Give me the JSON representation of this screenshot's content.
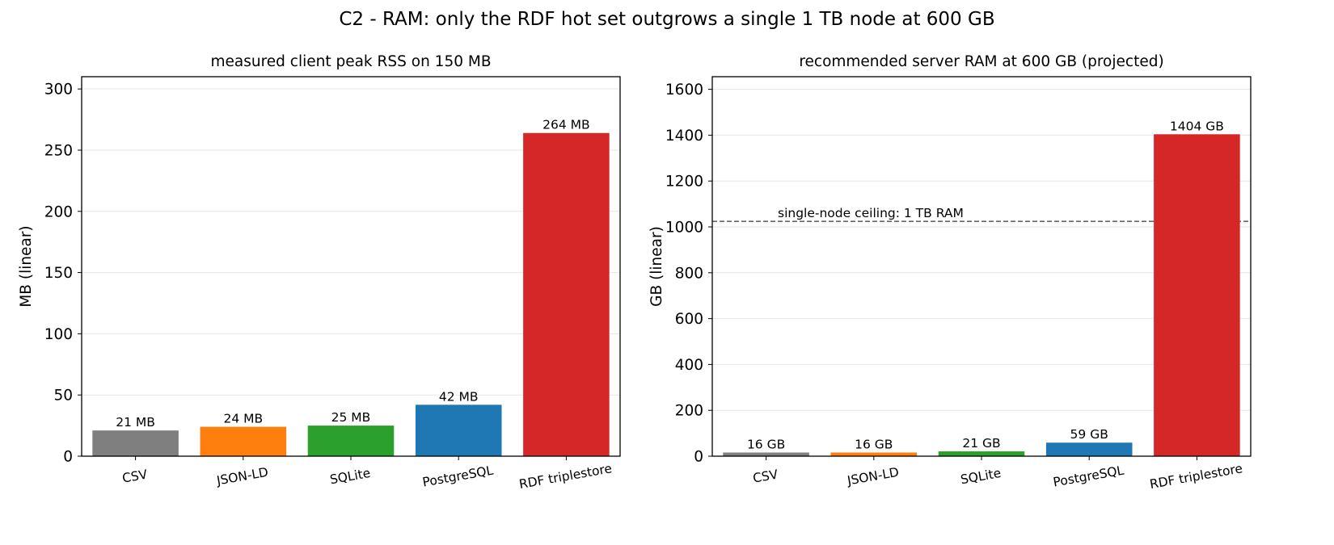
{
  "figure": {
    "title": "C2 - RAM: only the RDF hot set outgrows a single 1 TB node at 600 GB"
  },
  "chart_data": [
    {
      "type": "bar",
      "title": "measured client peak RSS on 150 MB",
      "xlabel": "",
      "ylabel": "MB (linear)",
      "categories": [
        "CSV",
        "JSON-LD",
        "SQLite",
        "PostgreSQL",
        "RDF triplestore"
      ],
      "values": [
        21,
        24,
        25,
        42,
        264
      ],
      "data_labels": [
        "21 MB",
        "24 MB",
        "25 MB",
        "42 MB",
        "264 MB"
      ],
      "colors": [
        "#7f7f7f",
        "#ff7f0e",
        "#2ca02c",
        "#1f77b4",
        "#d62728"
      ],
      "ylim": [
        0,
        310
      ],
      "yticks": [
        0,
        50,
        100,
        150,
        200,
        250,
        300
      ],
      "grid": "y"
    },
    {
      "type": "bar",
      "title": "recommended server RAM at 600 GB (projected)",
      "xlabel": "",
      "ylabel": "GB (linear)",
      "categories": [
        "CSV",
        "JSON-LD",
        "SQLite",
        "PostgreSQL",
        "RDF triplestore"
      ],
      "values": [
        16,
        16,
        21,
        59,
        1404
      ],
      "data_labels": [
        "16 GB",
        "16 GB",
        "21 GB",
        "59 GB",
        "1404 GB"
      ],
      "colors": [
        "#7f7f7f",
        "#ff7f0e",
        "#2ca02c",
        "#1f77b4",
        "#d62728"
      ],
      "ylim": [
        0,
        1655
      ],
      "yticks": [
        0,
        200,
        400,
        600,
        800,
        1000,
        1200,
        1400,
        1600
      ],
      "grid": "y",
      "reference_line": {
        "value": 1024,
        "label": "single-node ceiling: 1 TB RAM",
        "color": "#666666",
        "style": "dashed"
      }
    }
  ]
}
